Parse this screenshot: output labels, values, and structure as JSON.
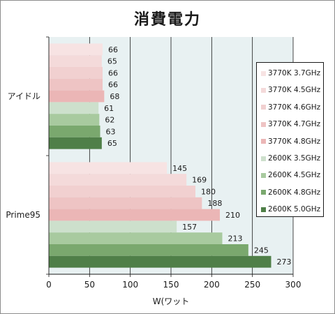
{
  "chart_data": {
    "type": "bar",
    "orientation": "horizontal",
    "title": "消費電力",
    "xlabel": "W(ワット",
    "ylabel": "",
    "xlim": [
      0,
      300
    ],
    "xticks": [
      0,
      50,
      100,
      150,
      200,
      250,
      300
    ],
    "categories": [
      "アイドル",
      "Prime95"
    ],
    "series": [
      {
        "name": "3770K 3.7GHz",
        "color": "#f7e3e3",
        "values": [
          66,
          145
        ]
      },
      {
        "name": "3770K 4.5GHz",
        "color": "#f4dada",
        "values": [
          65,
          169
        ]
      },
      {
        "name": "3770K 4.6GHz",
        "color": "#f1d0d0",
        "values": [
          66,
          180
        ]
      },
      {
        "name": "3770K 4.7GHz",
        "color": "#eec4c4",
        "values": [
          66,
          188
        ]
      },
      {
        "name": "3770K 4.8GHz",
        "color": "#ebb6b6",
        "values": [
          68,
          210
        ]
      },
      {
        "name": "2600K 3.5GHz",
        "color": "#cde0cc",
        "values": [
          61,
          157
        ]
      },
      {
        "name": "2600K 4.5GHz",
        "color": "#a8ca9f",
        "values": [
          62,
          213
        ]
      },
      {
        "name": "2600K 4.8GHz",
        "color": "#7aa86e",
        "values": [
          63,
          245
        ]
      },
      {
        "name": "2600K 5.0GHz",
        "color": "#4f7f48",
        "values": [
          65,
          273
        ]
      }
    ],
    "grid": true,
    "legend_position": "right"
  }
}
